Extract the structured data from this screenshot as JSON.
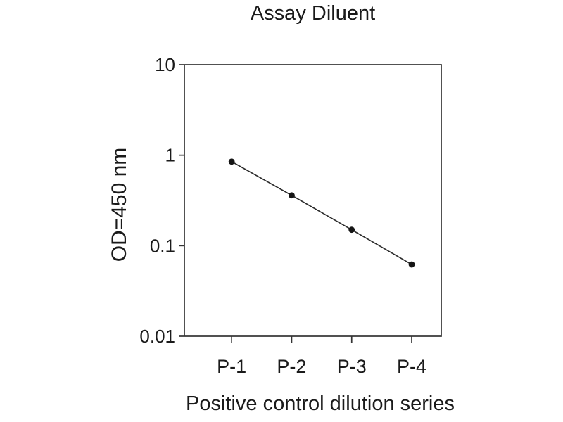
{
  "chart_data": {
    "type": "line",
    "title": "Assay Diluent",
    "xlabel": "Positive control dilution series",
    "ylabel": "OD=450 nm",
    "categories": [
      "P-1",
      "P-2",
      "P-3",
      "P-4"
    ],
    "values": [
      0.85,
      0.36,
      0.15,
      0.062
    ],
    "series": [
      {
        "name": "Positive control",
        "values": [
          0.85,
          0.36,
          0.15,
          0.062
        ]
      }
    ],
    "yscale": "log",
    "ylim": [
      0.01,
      10
    ],
    "ytick_labels": [
      "10",
      "1",
      "0.1",
      "0.01"
    ],
    "ytick_values": [
      10,
      1,
      0.1,
      0.01
    ],
    "grid": false,
    "legend_position": "none",
    "marker": "filled-circle",
    "colors": {
      "background": "#ffffff",
      "frame": "#333333",
      "line": "#2b2b2b",
      "marker": "#151515",
      "text": "#1a1a1a"
    }
  }
}
